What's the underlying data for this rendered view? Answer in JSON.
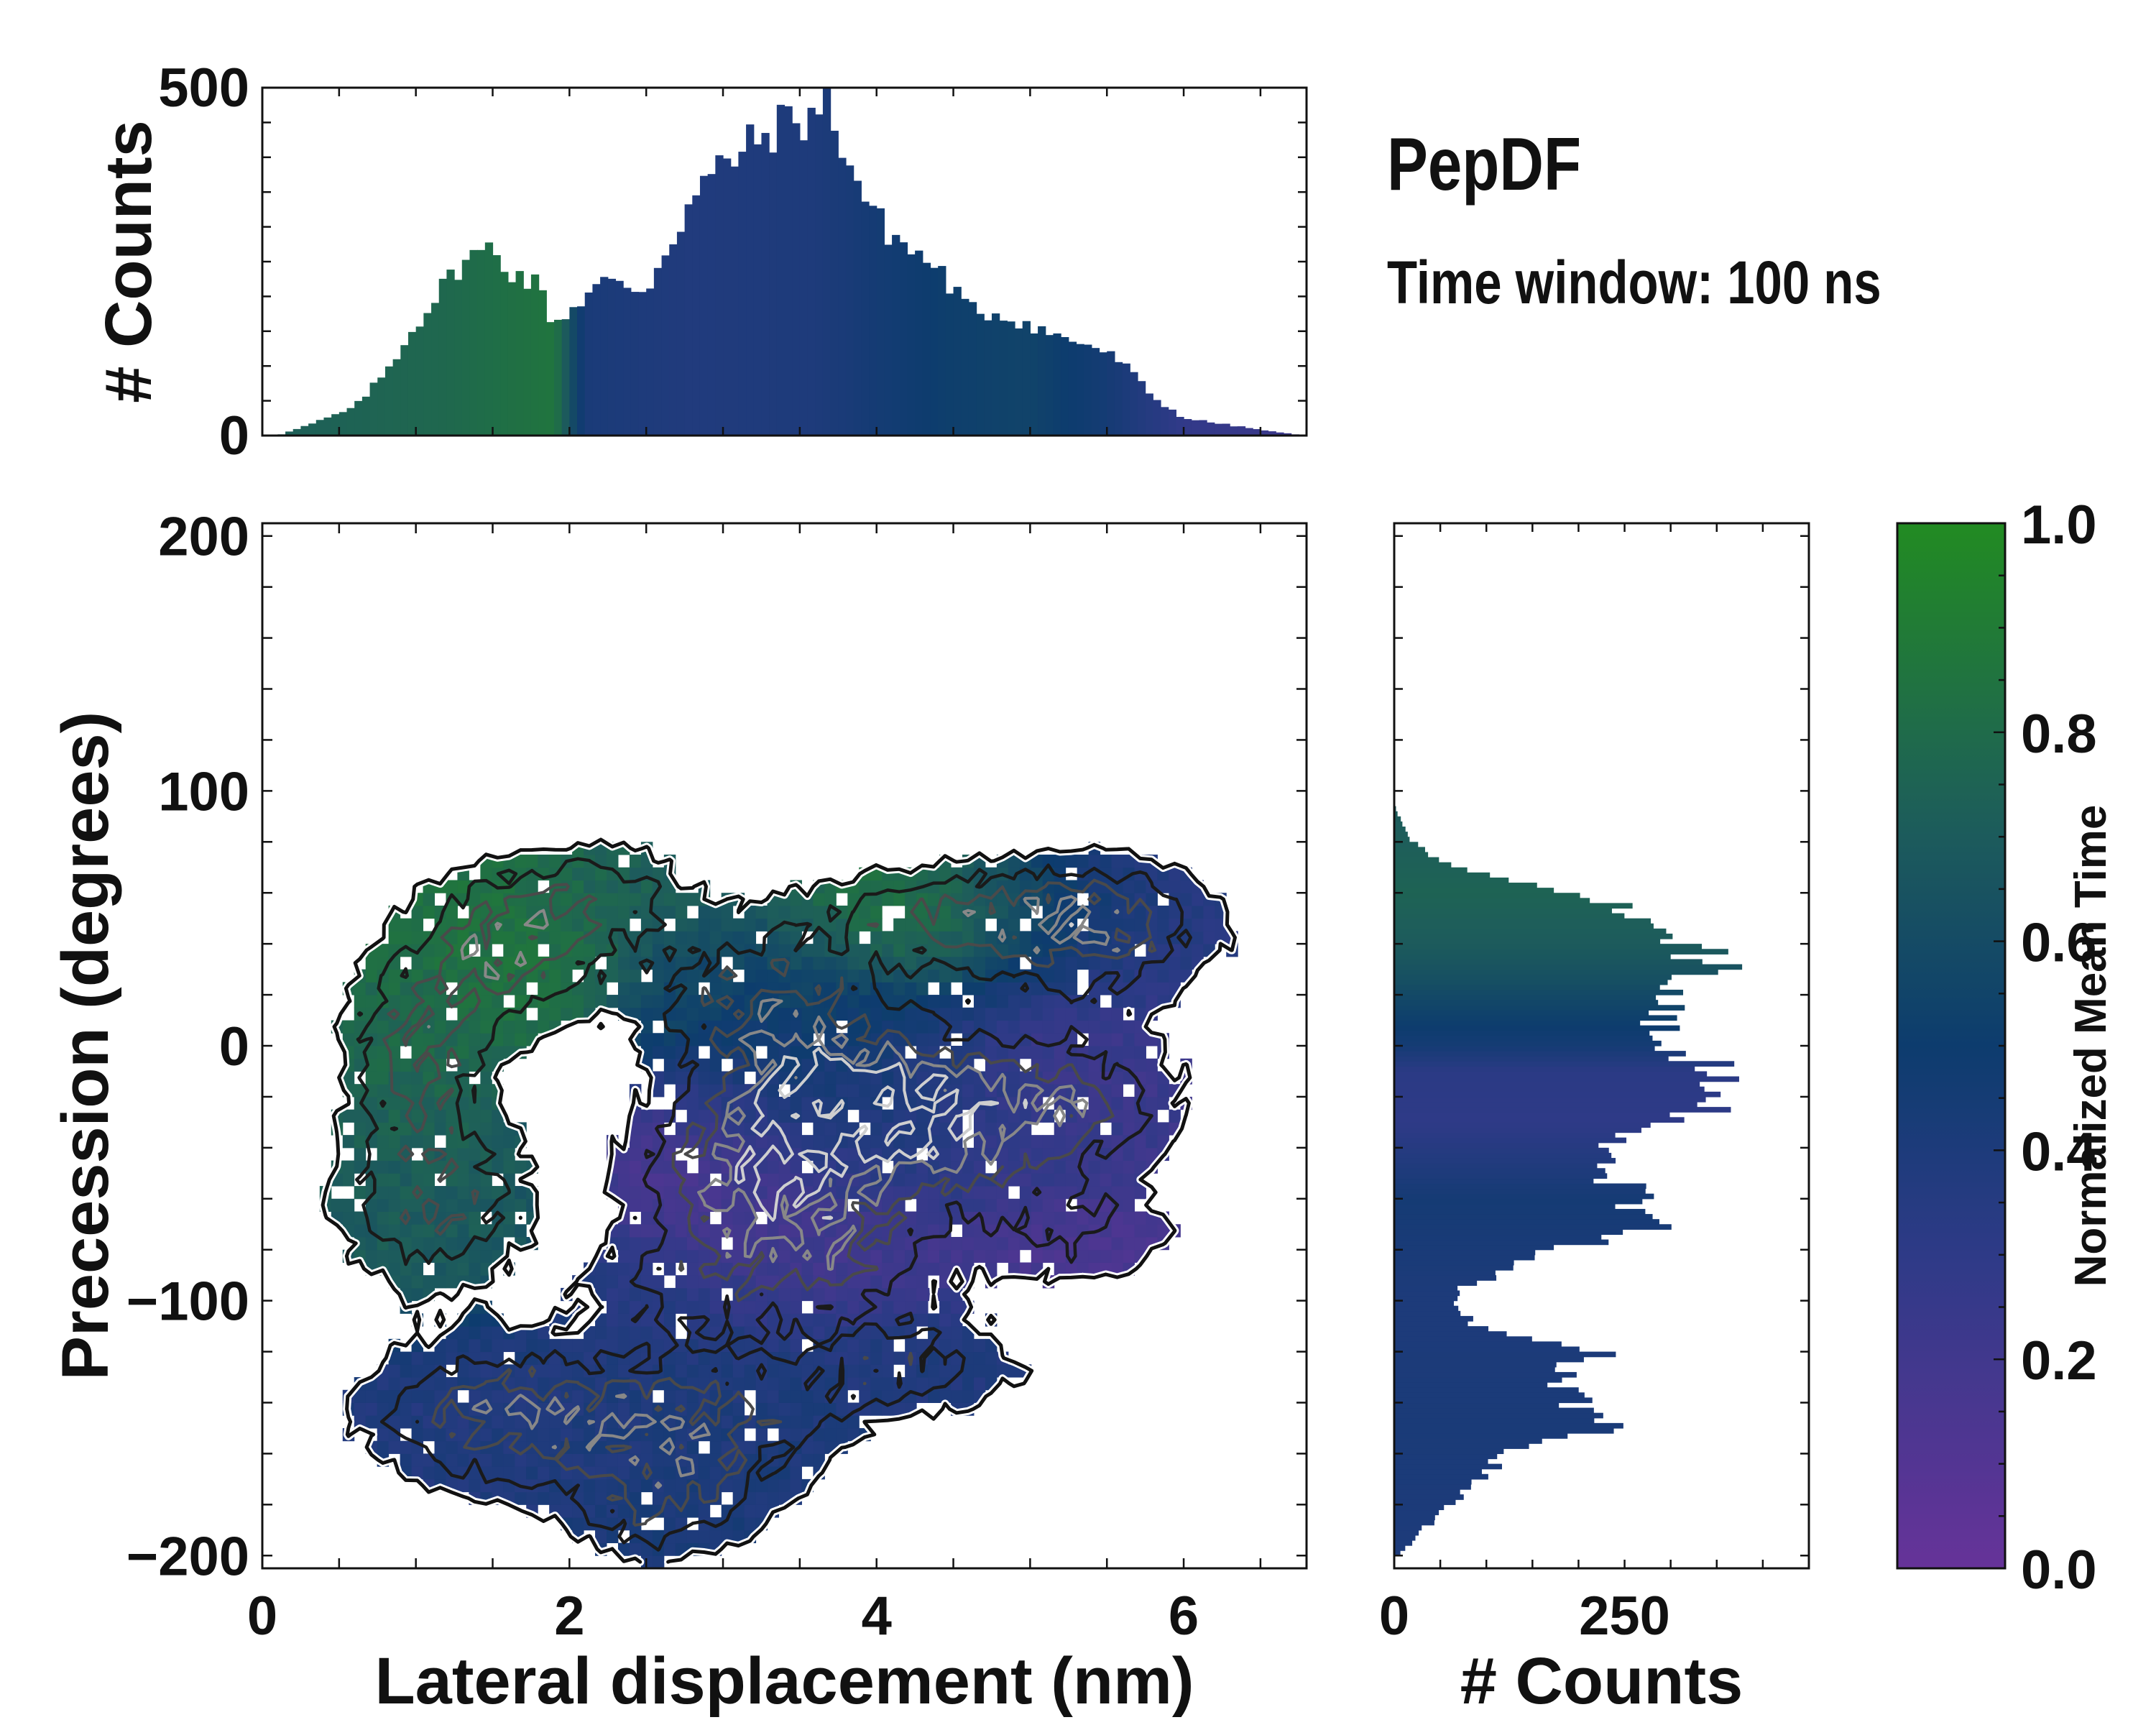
{
  "figure": {
    "title": "PepDF",
    "subtitle": "Time window: 100 ns"
  },
  "colors": {
    "cmap_low": "#663399",
    "cmap_mid1": "#2e3a87",
    "cmap_mid2": "#0d3c6e",
    "cmap_mid3": "#1e5e5a",
    "cmap_high": "#228b22",
    "contour_dark": "#111111",
    "contour_light": "#cfcfcf"
  },
  "chart_data": [
    {
      "name": "top-histogram",
      "type": "bar",
      "title": "",
      "xlabel": "",
      "ylabel": "# Counts",
      "xlim": [
        0,
        6.8
      ],
      "ylim": [
        0,
        500
      ],
      "yticks": [
        "0",
        "500"
      ],
      "bin_width": 0.05,
      "profile_x": [
        0.1,
        0.3,
        0.6,
        0.8,
        1.0,
        1.1,
        1.3,
        1.5,
        1.6,
        1.8,
        1.9,
        2.0,
        2.2,
        2.5,
        2.6,
        2.8,
        3.0,
        3.2,
        3.4,
        3.6,
        3.7,
        3.8,
        4.0,
        4.2,
        4.4,
        4.6,
        4.8,
        5.0,
        5.2,
        5.4,
        5.6,
        5.8,
        6.0,
        6.3,
        6.6,
        6.8
      ],
      "profile_y": [
        0,
        15,
        40,
        90,
        160,
        190,
        250,
        270,
        240,
        215,
        160,
        180,
        220,
        210,
        255,
        340,
        390,
        420,
        450,
        460,
        480,
        400,
        310,
        270,
        240,
        180,
        175,
        160,
        140,
        130,
        105,
        55,
        25,
        15,
        5,
        0
      ],
      "color_profile_x": [
        0.0,
        1.2,
        1.9,
        2.1,
        2.8,
        3.6,
        4.5,
        5.0,
        5.5,
        6.0,
        6.8
      ],
      "color_profile_v": [
        0.72,
        0.78,
        0.86,
        0.42,
        0.38,
        0.4,
        0.52,
        0.55,
        0.45,
        0.28,
        0.22
      ]
    },
    {
      "name": "main-2d-histogram",
      "type": "heatmap",
      "title": "",
      "xlabel": "Lateral displacement (nm)",
      "ylabel": "Precession (degrees)",
      "xlim": [
        0,
        6.8
      ],
      "ylim": [
        -205,
        205
      ],
      "xticks": [
        0,
        2,
        4,
        6
      ],
      "xtick_labels": [
        "0",
        "2",
        "4",
        "6"
      ],
      "yticks": [
        -200,
        -100,
        0,
        100,
        200
      ],
      "ytick_labels": [
        "−200",
        "−100",
        "0",
        "100",
        "200"
      ],
      "cell_size": {
        "x": 0.075,
        "y": 5
      },
      "blobs": [
        {
          "cx": 1.6,
          "cy": 40,
          "sx": 0.45,
          "sy": 22,
          "amp": 1.0,
          "t": 0.85
        },
        {
          "cx": 1.0,
          "cy": 0,
          "sx": 0.35,
          "sy": 25,
          "amp": 0.85,
          "t": 0.78
        },
        {
          "cx": 1.1,
          "cy": -60,
          "sx": 0.45,
          "sy": 25,
          "amp": 0.9,
          "t": 0.7
        },
        {
          "cx": 2.3,
          "cy": 60,
          "sx": 0.4,
          "sy": 15,
          "amp": 0.55,
          "t": 0.72
        },
        {
          "cx": 3.2,
          "cy": 20,
          "sx": 0.55,
          "sy": 20,
          "amp": 0.8,
          "t": 0.55
        },
        {
          "cx": 4.5,
          "cy": 50,
          "sx": 0.7,
          "sy": 15,
          "amp": 0.8,
          "t": 0.85
        },
        {
          "cx": 5.5,
          "cy": 45,
          "sx": 0.55,
          "sy": 20,
          "amp": 0.9,
          "t": 0.3
        },
        {
          "cx": 3.8,
          "cy": -20,
          "sx": 0.55,
          "sy": 22,
          "amp": 1.35,
          "t": 0.45
        },
        {
          "cx": 3.1,
          "cy": -50,
          "sx": 0.5,
          "sy": 22,
          "amp": 1.0,
          "t": 0.15
        },
        {
          "cx": 4.6,
          "cy": -35,
          "sx": 0.6,
          "sy": 20,
          "amp": 0.8,
          "t": 0.3
        },
        {
          "cx": 5.3,
          "cy": -20,
          "sx": 0.55,
          "sy": 20,
          "amp": 0.7,
          "t": 0.22
        },
        {
          "cx": 3.7,
          "cy": -80,
          "sx": 0.5,
          "sy": 18,
          "amp": 0.85,
          "t": 0.2
        },
        {
          "cx": 5.3,
          "cy": -75,
          "sx": 0.5,
          "sy": 14,
          "amp": 0.6,
          "t": 0.15
        },
        {
          "cx": 2.7,
          "cy": -95,
          "sx": 0.45,
          "sy": 14,
          "amp": 0.55,
          "t": 0.35
        },
        {
          "cx": 1.5,
          "cy": -145,
          "sx": 0.6,
          "sy": 20,
          "amp": 1.0,
          "t": 0.38
        },
        {
          "cx": 2.8,
          "cy": -150,
          "sx": 0.65,
          "sy": 22,
          "amp": 0.95,
          "t": 0.4
        },
        {
          "cx": 4.2,
          "cy": -125,
          "sx": 0.6,
          "sy": 15,
          "amp": 0.7,
          "t": 0.38
        },
        {
          "cx": 2.6,
          "cy": -185,
          "sx": 0.4,
          "sy": 14,
          "amp": 0.6,
          "t": 0.42
        }
      ],
      "occupancy_threshold": 0.32,
      "contour_levels": [
        0.32,
        0.6,
        0.9,
        1.2,
        1.5
      ]
    },
    {
      "name": "right-histogram",
      "type": "bar",
      "orientation": "horizontal",
      "title": "",
      "xlabel": "# Counts",
      "ylabel": "",
      "xlim": [
        0,
        450
      ],
      "ylim": [
        -205,
        205
      ],
      "xticks": [
        0,
        250
      ],
      "xtick_labels": [
        "0",
        "250"
      ],
      "bin_width": 2,
      "profile_y": [
        -200,
        -190,
        -180,
        -170,
        -160,
        -150,
        -140,
        -130,
        -120,
        -110,
        -100,
        -95,
        -90,
        -80,
        -70,
        -60,
        -50,
        -40,
        -30,
        -20,
        -10,
        0,
        10,
        20,
        30,
        40,
        50,
        60,
        70,
        80,
        90,
        95
      ],
      "profile_x": [
        5,
        30,
        60,
        90,
        120,
        230,
        200,
        180,
        220,
        90,
        60,
        70,
        110,
        180,
        280,
        260,
        230,
        210,
        300,
        390,
        350,
        300,
        280,
        300,
        340,
        330,
        290,
        180,
        60,
        20,
        5,
        0
      ],
      "color_profile_y": [
        -205,
        -150,
        -100,
        -60,
        -30,
        -10,
        0,
        15,
        25,
        40,
        60,
        80,
        95
      ],
      "color_profile_v": [
        0.4,
        0.42,
        0.4,
        0.45,
        0.3,
        0.32,
        0.45,
        0.55,
        0.62,
        0.7,
        0.75,
        0.72,
        0.7
      ]
    },
    {
      "name": "colorbar",
      "type": "colorbar",
      "label": "Normalized Mean Time",
      "vmin": 0.0,
      "vmax": 1.0,
      "ticks": [
        0.0,
        0.2,
        0.4,
        0.6,
        0.8,
        1.0
      ],
      "tick_labels": [
        "0.0",
        "0.2",
        "0.4",
        "0.6",
        "0.8",
        "1.0"
      ]
    }
  ]
}
